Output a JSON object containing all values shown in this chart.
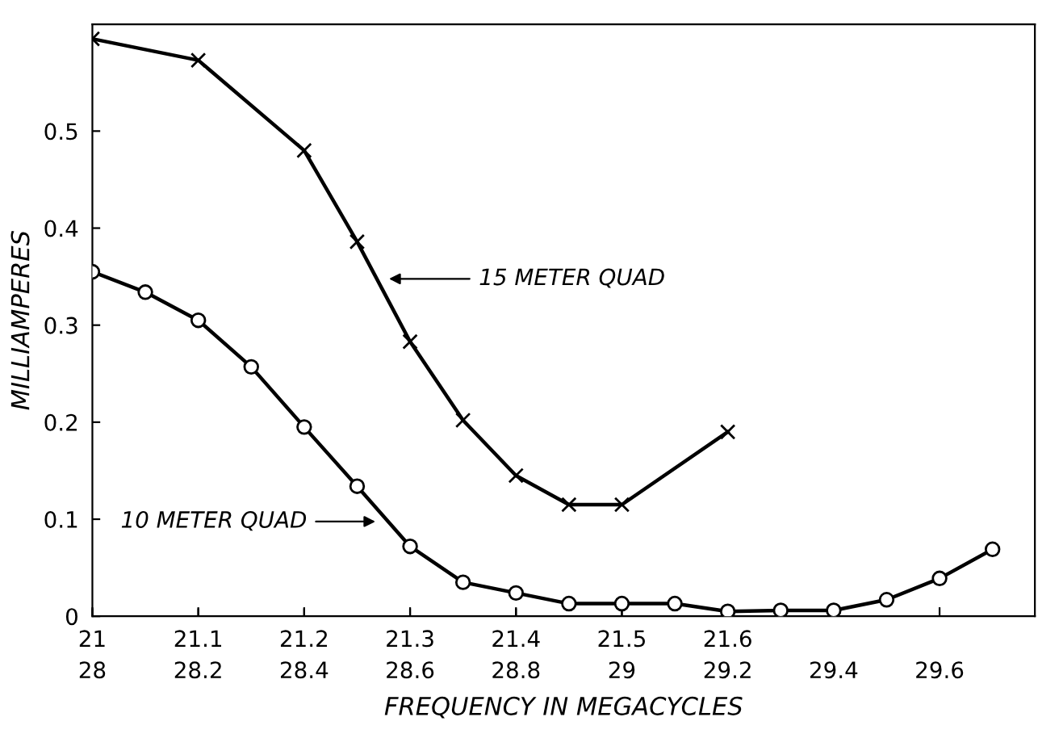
{
  "chart_data": {
    "type": "line",
    "xlabel": "FREQUENCY IN MEGACYCLES",
    "ylabel": "MILLIAMPERES",
    "xlim": [
      21,
      21.89
    ],
    "xticks": [
      21,
      21.1,
      21.2,
      21.3,
      21.4,
      21.5,
      21.6
    ],
    "x2lim": [
      28,
      29.78
    ],
    "x2ticks": [
      28,
      28.2,
      28.4,
      28.6,
      28.8,
      29,
      29.2,
      29.4,
      29.6
    ],
    "ylim": [
      0,
      0.61
    ],
    "yticks": [
      0,
      0.1,
      0.2,
      0.3,
      0.4,
      0.5
    ],
    "grid": false,
    "legend": false,
    "line_style": "solid",
    "series": [
      {
        "color": "#000000",
        "marker": "cross",
        "x": [
          21.0,
          21.1,
          21.2,
          21.25,
          21.3,
          21.35,
          21.4,
          21.45,
          21.5,
          21.6
        ],
        "values": [
          0.595,
          0.573,
          0.48,
          0.386,
          0.283,
          0.202,
          0.145,
          0.115,
          0.115,
          0.19
        ]
      },
      {
        "color": "#000000",
        "marker": "circle",
        "axis": "x2",
        "x": [
          28.0,
          28.1,
          28.2,
          28.3,
          28.4,
          28.5,
          28.6,
          28.7,
          28.8,
          28.9,
          29.0,
          29.1,
          29.2,
          29.3,
          29.4,
          29.5,
          29.6,
          29.7
        ],
        "values": [
          0.355,
          0.334,
          0.305,
          0.257,
          0.195,
          0.134,
          0.072,
          0.035,
          0.024,
          0.013,
          0.013,
          0.013,
          0.005,
          0.006,
          0.006,
          0.017,
          0.039,
          0.069
        ]
      }
    ],
    "annotations": [
      "15 METER QUAD",
      "10 METER QUAD"
    ]
  }
}
